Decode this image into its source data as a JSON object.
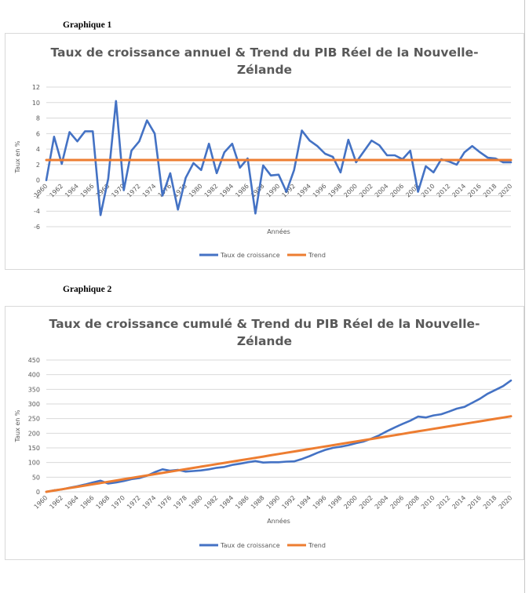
{
  "chart_data": [
    {
      "type": "line",
      "heading": "Graphique 1",
      "title_lines": [
        "Taux de croissance annuel & Trend du PIB Réel de la Nouvelle-",
        "Zélande"
      ],
      "xlabel": "Années",
      "ylabel": "Taux en %",
      "ylim": [
        -6,
        12
      ],
      "yticks": [
        -6,
        -4,
        -2,
        0,
        2,
        4,
        6,
        8,
        10,
        12
      ],
      "x": [
        1960,
        1961,
        1962,
        1963,
        1964,
        1965,
        1966,
        1967,
        1968,
        1969,
        1970,
        1971,
        1972,
        1973,
        1974,
        1975,
        1976,
        1977,
        1978,
        1979,
        1980,
        1981,
        1982,
        1983,
        1984,
        1985,
        1986,
        1987,
        1988,
        1989,
        1990,
        1991,
        1992,
        1993,
        1994,
        1995,
        1996,
        1997,
        1998,
        1999,
        2000,
        2001,
        2002,
        2003,
        2004,
        2005,
        2006,
        2007,
        2008,
        2009,
        2010,
        2011,
        2012,
        2013,
        2014,
        2015,
        2016,
        2017,
        2018,
        2019,
        2020
      ],
      "xtick_labels": [
        "1960",
        "1962",
        "1964",
        "1966",
        "1968",
        "1970",
        "1972",
        "1974",
        "1976",
        "1978",
        "1980",
        "1982",
        "1984",
        "1986",
        "1988",
        "1990",
        "1992",
        "1994",
        "1996",
        "1998",
        "2000",
        "2002",
        "2004",
        "2006",
        "2008",
        "2010",
        "2012",
        "2014",
        "2016",
        "2018",
        "2020"
      ],
      "series": [
        {
          "name": "Taux de croissance",
          "color": "#4472c4",
          "values": [
            0,
            5.6,
            2.1,
            6.2,
            5.0,
            6.3,
            6.3,
            -4.5,
            0.2,
            10.2,
            -1.3,
            3.8,
            5.0,
            7.7,
            6.0,
            -2.0,
            0.9,
            -3.8,
            0.3,
            2.2,
            1.3,
            4.7,
            0.9,
            3.6,
            4.7,
            1.6,
            2.8,
            -4.3,
            1.9,
            0.6,
            0.7,
            -1.5,
            1.3,
            6.4,
            5.1,
            4.4,
            3.4,
            3.0,
            1.0,
            5.2,
            2.3,
            3.7,
            5.1,
            4.5,
            3.2,
            3.2,
            2.7,
            3.8,
            -1.5,
            1.8,
            1.0,
            2.7,
            2.4,
            2.0,
            3.6,
            4.4,
            3.6,
            2.9,
            2.8,
            2.3,
            2.3
          ]
        },
        {
          "name": "Trend",
          "color": "#ed7d31",
          "values": [
            2.6,
            2.6,
            2.6,
            2.6,
            2.6,
            2.6,
            2.6,
            2.6,
            2.6,
            2.6,
            2.6,
            2.6,
            2.6,
            2.6,
            2.6,
            2.6,
            2.6,
            2.6,
            2.6,
            2.6,
            2.6,
            2.6,
            2.6,
            2.6,
            2.6,
            2.6,
            2.6,
            2.6,
            2.6,
            2.6,
            2.6,
            2.6,
            2.6,
            2.6,
            2.6,
            2.6,
            2.6,
            2.6,
            2.6,
            2.6,
            2.6,
            2.6,
            2.6,
            2.6,
            2.6,
            2.6,
            2.6,
            2.6,
            2.6,
            2.6,
            2.6,
            2.6,
            2.6,
            2.6,
            2.6,
            2.6,
            2.6,
            2.6,
            2.6,
            2.6,
            2.6
          ]
        }
      ],
      "legend_position": "bottom",
      "grid": true
    },
    {
      "type": "line",
      "heading": "Graphique 2",
      "title_lines": [
        "Taux de croissance cumulé & Trend du PIB Réel de la Nouvelle-",
        "Zélande"
      ],
      "xlabel": "Années",
      "ylabel": "Taux en %",
      "ylim": [
        0,
        450
      ],
      "yticks": [
        0,
        50,
        100,
        150,
        200,
        250,
        300,
        350,
        400,
        450
      ],
      "x": [
        1960,
        1961,
        1962,
        1963,
        1964,
        1965,
        1966,
        1967,
        1968,
        1969,
        1970,
        1971,
        1972,
        1973,
        1974,
        1975,
        1976,
        1977,
        1978,
        1979,
        1980,
        1981,
        1982,
        1983,
        1984,
        1985,
        1986,
        1987,
        1988,
        1989,
        1990,
        1991,
        1992,
        1993,
        1994,
        1995,
        1996,
        1997,
        1998,
        1999,
        2000,
        2001,
        2002,
        2003,
        2004,
        2005,
        2006,
        2007,
        2008,
        2009,
        2010,
        2011,
        2012,
        2013,
        2014,
        2015,
        2016,
        2017,
        2018,
        2019,
        2020
      ],
      "xtick_labels": [
        "1960",
        "1962",
        "1964",
        "1966",
        "1968",
        "1970",
        "1972",
        "1974",
        "1976",
        "1978",
        "1980",
        "1982",
        "1984",
        "1986",
        "1988",
        "1990",
        "1992",
        "1994",
        "1996",
        "1998",
        "2000",
        "2002",
        "2004",
        "2006",
        "2008",
        "2010",
        "2012",
        "2014",
        "2016",
        "2018",
        "2020"
      ],
      "series": [
        {
          "name": "Taux de croissance",
          "color": "#4472c4",
          "values": [
            0,
            5,
            8,
            14,
            19,
            25,
            32,
            38,
            28,
            32,
            37,
            43,
            47,
            55,
            67,
            77,
            72,
            75,
            69,
            71,
            73,
            77,
            82,
            85,
            92,
            96,
            101,
            105,
            100,
            101,
            101,
            103,
            104,
            112,
            122,
            133,
            143,
            150,
            154,
            159,
            166,
            172,
            182,
            193,
            207,
            220,
            232,
            243,
            257,
            254,
            261,
            265,
            274,
            284,
            290,
            304,
            318,
            335,
            348,
            361,
            380
          ]
        },
        {
          "name": "Trend",
          "color": "#ed7d31",
          "values": [
            0,
            4.3,
            8.6,
            12.9,
            17.2,
            21.5,
            25.8,
            30.1,
            34.4,
            38.7,
            43,
            47.3,
            51.6,
            55.9,
            60.2,
            64.5,
            68.8,
            73.1,
            77.4,
            81.7,
            86,
            90.3,
            94.6,
            98.9,
            103.2,
            107.5,
            111.8,
            116.1,
            120.4,
            124.7,
            129,
            133.3,
            137.6,
            141.9,
            146.2,
            150.5,
            154.8,
            159.1,
            163.4,
            167.7,
            172,
            176.3,
            180.6,
            184.9,
            189.2,
            193.5,
            197.8,
            202.1,
            206.4,
            210.7,
            215,
            219.3,
            223.6,
            227.9,
            232.2,
            236.5,
            240.8,
            245.1,
            249.4,
            253.7,
            258
          ]
        }
      ],
      "legend_position": "bottom",
      "grid": true
    }
  ]
}
